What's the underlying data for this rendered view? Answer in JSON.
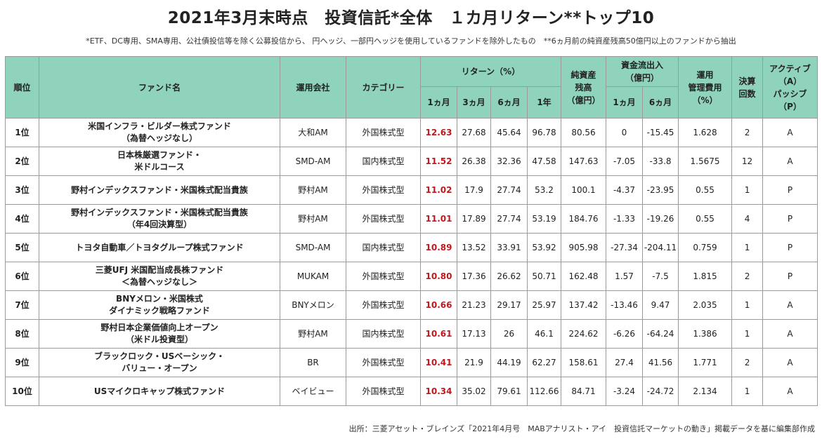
{
  "title": "2021年3月末時点　投資信託*全体　１カ月リターン**トップ10",
  "note": "*ETF、DC専用、SMA専用、公社債投信等を除く公募投信から、 円ヘッジ、一部円ヘッジを使用しているファンドを除外したもの　**6ヵ月前の純資産残高50億円以上のファンドから抽出",
  "headers": {
    "rank": "順位",
    "fund_name": "ファンド名",
    "company": "運用会社",
    "category": "カテゴリー",
    "return_group": "リターン（%）",
    "r1m": "1ヵ月",
    "r3m": "3ヵ月",
    "r6m": "6ヵ月",
    "r1y": "1年",
    "net_assets": [
      "純資産",
      "残高",
      "（億円）"
    ],
    "flow_group": [
      "資金流出入",
      "（億円）"
    ],
    "f1m": "1ヵ月",
    "f6m": "6ヵ月",
    "fee": [
      "運用",
      "管理費用",
      "（%）"
    ],
    "settlement": [
      "決算",
      "回数"
    ],
    "active_passive": [
      "アクティブ",
      "（A）",
      "パッシブ",
      "（P）"
    ]
  },
  "rows": [
    {
      "rank": "1位",
      "name": [
        "米国インフラ・ビルダー株式ファンド",
        "（為替ヘッジなし）"
      ],
      "company": "大和AM",
      "category": "外国株式型",
      "r1m": "12.63",
      "r3m": "27.68",
      "r6m": "45.64",
      "r1y": "96.78",
      "net_assets": "80.56",
      "f1m": "0",
      "f6m": "-15.45",
      "fee": "1.628",
      "settlement": "2",
      "ap": "A"
    },
    {
      "rank": "2位",
      "name": [
        "日本株厳選ファンド・",
        "米ドルコース"
      ],
      "company": "SMD-AM",
      "category": "国内株式型",
      "r1m": "11.52",
      "r3m": "26.38",
      "r6m": "32.36",
      "r1y": "47.58",
      "net_assets": "147.63",
      "f1m": "-7.05",
      "f6m": "-33.8",
      "fee": "1.5675",
      "settlement": "12",
      "ap": "A"
    },
    {
      "rank": "3位",
      "name": [
        "野村インデックスファンド・米国株式配当貴族"
      ],
      "company": "野村AM",
      "category": "外国株式型",
      "r1m": "11.02",
      "r3m": "17.9",
      "r6m": "27.74",
      "r1y": "53.2",
      "net_assets": "100.1",
      "f1m": "-4.37",
      "f6m": "-23.95",
      "fee": "0.55",
      "settlement": "1",
      "ap": "P"
    },
    {
      "rank": "4位",
      "name": [
        "野村インデックスファンド・米国株式配当貴族",
        "（年4回決算型）"
      ],
      "company": "野村AM",
      "category": "外国株式型",
      "r1m": "11.01",
      "r3m": "17.89",
      "r6m": "27.74",
      "r1y": "53.19",
      "net_assets": "184.76",
      "f1m": "-1.33",
      "f6m": "-19.26",
      "fee": "0.55",
      "settlement": "4",
      "ap": "P"
    },
    {
      "rank": "5位",
      "name": [
        "トヨタ自動車／トヨタグループ株式ファンド"
      ],
      "company": "SMD-AM",
      "category": "国内株式型",
      "r1m": "10.89",
      "r3m": "13.52",
      "r6m": "33.91",
      "r1y": "53.92",
      "net_assets": "905.98",
      "f1m": "-27.34",
      "f6m": "-204.11",
      "fee": "0.759",
      "settlement": "1",
      "ap": "P"
    },
    {
      "rank": "6位",
      "name": [
        "三菱UFJ 米国配当成長株ファンド",
        "＜為替ヘッジなし＞"
      ],
      "company": "MUKAM",
      "category": "外国株式型",
      "r1m": "10.80",
      "r3m": "17.36",
      "r6m": "26.62",
      "r1y": "50.71",
      "net_assets": "162.48",
      "f1m": "1.57",
      "f6m": "-7.5",
      "fee": "1.815",
      "settlement": "2",
      "ap": "P"
    },
    {
      "rank": "7位",
      "name": [
        "BNYメロン・米国株式",
        "ダイナミック戦略ファンド"
      ],
      "company": "BNYメロン",
      "category": "外国株式型",
      "r1m": "10.66",
      "r3m": "21.23",
      "r6m": "29.17",
      "r1y": "25.97",
      "net_assets": "137.42",
      "f1m": "-13.46",
      "f6m": "9.47",
      "fee": "2.035",
      "settlement": "1",
      "ap": "A"
    },
    {
      "rank": "8位",
      "name": [
        "野村日本企業価値向上オープン",
        "（米ドル投資型）"
      ],
      "company": "野村AM",
      "category": "国内株式型",
      "r1m": "10.61",
      "r3m": "17.13",
      "r6m": "26",
      "r1y": "46.1",
      "net_assets": "224.62",
      "f1m": "-6.26",
      "f6m": "-64.24",
      "fee": "1.386",
      "settlement": "1",
      "ap": "A"
    },
    {
      "rank": "9位",
      "name": [
        "ブラックロック・USベーシック・",
        "バリュー・オープン"
      ],
      "company": "BR",
      "category": "外国株式型",
      "r1m": "10.41",
      "r3m": "21.9",
      "r6m": "44.19",
      "r1y": "62.27",
      "net_assets": "158.61",
      "f1m": "27.4",
      "f6m": "41.56",
      "fee": "1.771",
      "settlement": "2",
      "ap": "A"
    },
    {
      "rank": "10位",
      "name": [
        "USマイクロキャップ株式ファンド"
      ],
      "company": "ベイビュー",
      "category": "外国株式型",
      "r1m": "10.34",
      "r3m": "35.02",
      "r6m": "79.61",
      "r1y": "112.66",
      "net_assets": "84.71",
      "f1m": "-3.24",
      "f6m": "-24.72",
      "fee": "2.134",
      "settlement": "1",
      "ap": "A"
    }
  ],
  "source": "出所：三菱アセット・ブレインズ「2021年4月号　MABアナリスト・アイ　投資信託マーケットの動き」掲載データを基に編集部作成"
}
